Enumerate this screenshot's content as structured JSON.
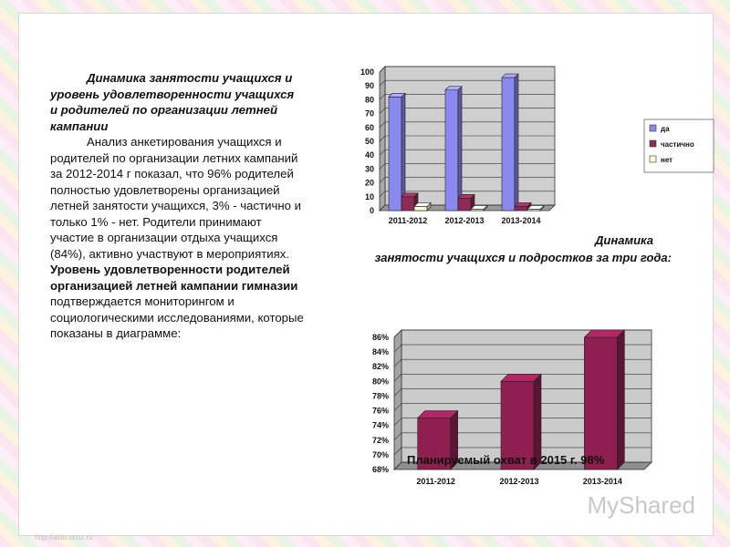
{
  "left_text": {
    "heading1": "Динамика занятости учащихся и уровень удовлетворенности учащихся и родителей по организации летней кампании",
    "para1": "Анализ анкетирования учащихся и родителей по организации летних кампаний за 2012-2014 г показал, что 96% родителей полностью удовлетворены организацией летней занятости учащихся, 3% - частично и только 1% - нет. Родители принимают участие в организации отдыха учащихся (84%), активно участвуют в мероприятиях.",
    "heading2": "Уровень удовлетворенности родителей организацией летней кампании гимназии",
    "para2": " подтверждается мониторингом и социологическими исследованиями, которые показаны в диаграмме:"
  },
  "chart1_title": {
    "line1": "Динамика",
    "line2": "занятости учащихся и подростков за три года:"
  },
  "chart2_overlay": "Планируемый охват в 2015 г. 98%",
  "watermark": "MyShared",
  "footer_mark": "http://aida.ucoz.ru",
  "chart_data": [
    {
      "type": "bar",
      "categories": [
        "2011-2012",
        "2012-2013",
        "2013-2014"
      ],
      "series": [
        {
          "name": "да",
          "values": [
            82,
            87,
            96
          ],
          "color": "#8a8aee"
        },
        {
          "name": "частично",
          "values": [
            10,
            9,
            3
          ],
          "color": "#8e2a55"
        },
        {
          "name": "нет",
          "values": [
            3,
            1,
            1
          ],
          "color": "#fbfbd5"
        }
      ],
      "ylim": [
        0,
        100
      ],
      "yticks": [
        0,
        10,
        20,
        30,
        40,
        50,
        60,
        70,
        80,
        90,
        100
      ],
      "legend": "right",
      "grid": true
    },
    {
      "type": "bar",
      "categories": [
        "2011-2012",
        "2012-2013",
        "2013-2014"
      ],
      "values": [
        75,
        80,
        86
      ],
      "color": "#8e1f50",
      "ylim": [
        68,
        86
      ],
      "yticks": [
        "68%",
        "70%",
        "72%",
        "74%",
        "76%",
        "78%",
        "80%",
        "82%",
        "84%",
        "86%"
      ],
      "grid": true
    }
  ]
}
